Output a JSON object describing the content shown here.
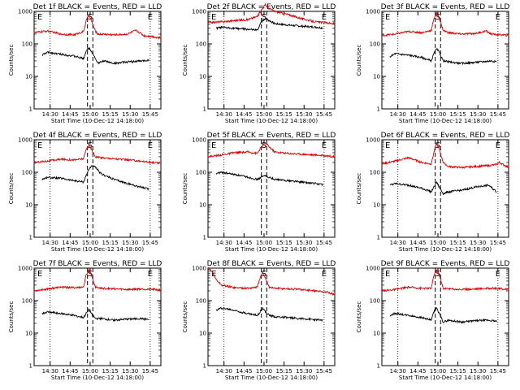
{
  "figure": {
    "common": {
      "title_suffix": " BLACK = Events, RED = LLD",
      "ylabel": "Counts/sec",
      "xlabel": "Start Time (10-Dec-12 14:18:00)",
      "y_ticks": [
        "1",
        "10",
        "100",
        "1000"
      ],
      "x_ticks": [
        "14:30",
        "14:45",
        "15:00",
        "15:15",
        "15:30",
        "15:45"
      ],
      "markers": [
        "E",
        "S",
        "E"
      ]
    },
    "colors": {
      "events": "#000000",
      "lld": "#dd0000"
    }
  },
  "chart_data": [
    {
      "type": "line",
      "title": "Det 1f BLACK = Events, RED = LLD",
      "detector": "Det 1f",
      "xlabel": "Start Time (10-Dec-12 14:18:00)",
      "ylabel": "Counts/sec",
      "yscale": "log",
      "ylim": [
        1,
        1000
      ],
      "x_units": "minutes after 14:18:00",
      "xlim": [
        0,
        95
      ],
      "series": [
        {
          "name": "BLACK = Events",
          "color": "#000000",
          "x": [
            6,
            10,
            20,
            30,
            37,
            39,
            41,
            43,
            46,
            48,
            52,
            60,
            70,
            82,
            86
          ],
          "y": [
            45,
            55,
            48,
            42,
            35,
            60,
            75,
            60,
            35,
            25,
            30,
            25,
            28,
            30,
            32
          ]
        },
        {
          "name": "RED = LLD",
          "color": "#dd0000",
          "x": [
            0,
            10,
            20,
            30,
            37,
            39,
            41,
            43,
            46,
            48,
            52,
            60,
            70,
            76,
            80,
            82,
            88,
            95
          ],
          "y": [
            220,
            250,
            200,
            190,
            240,
            500,
            800,
            500,
            240,
            200,
            200,
            190,
            200,
            260,
            210,
            180,
            170,
            150
          ]
        }
      ]
    },
    {
      "type": "line",
      "title": "Det 2f BLACK = Events, RED = LLD",
      "detector": "Det 2f",
      "xlabel": "Start Time (10-Dec-12 14:18:00)",
      "ylabel": "Counts/sec",
      "yscale": "log",
      "ylim": [
        1,
        1000
      ],
      "x_units": "minutes after 14:18:00",
      "xlim": [
        0,
        95
      ],
      "series": [
        {
          "name": "BLACK = Events",
          "color": "#000000",
          "x": [
            6,
            10,
            20,
            30,
            37,
            40,
            43,
            46,
            50,
            60,
            70,
            80,
            86
          ],
          "y": [
            300,
            320,
            300,
            280,
            260,
            480,
            600,
            520,
            420,
            380,
            350,
            330,
            310
          ]
        },
        {
          "name": "RED = LLD",
          "color": "#dd0000",
          "x": [
            0,
            10,
            20,
            30,
            37,
            40,
            43,
            46,
            50,
            60,
            70,
            80,
            90,
            95
          ],
          "y": [
            450,
            480,
            520,
            560,
            700,
            1100,
            1600,
            1200,
            1000,
            800,
            600,
            480,
            440,
            420
          ]
        }
      ]
    },
    {
      "type": "line",
      "title": "Det 3f BLACK = Events, RED = LLD",
      "detector": "Det 3f",
      "xlabel": "Start Time (10-Dec-12 14:18:00)",
      "ylabel": "Counts/sec",
      "yscale": "log",
      "ylim": [
        1,
        1000
      ],
      "x_units": "minutes after 14:18:00",
      "xlim": [
        0,
        95
      ],
      "series": [
        {
          "name": "BLACK = Events",
          "color": "#000000",
          "x": [
            6,
            10,
            20,
            30,
            37,
            39,
            41,
            43,
            46,
            50,
            60,
            70,
            82,
            86
          ],
          "y": [
            40,
            50,
            45,
            38,
            30,
            50,
            70,
            55,
            30,
            28,
            25,
            27,
            30,
            28
          ]
        },
        {
          "name": "RED = LLD",
          "color": "#dd0000",
          "x": [
            0,
            10,
            20,
            30,
            37,
            39,
            41,
            43,
            46,
            50,
            60,
            70,
            75,
            78,
            82,
            90,
            95
          ],
          "y": [
            180,
            200,
            240,
            220,
            260,
            600,
            900,
            600,
            260,
            220,
            200,
            210,
            230,
            250,
            200,
            190,
            180
          ]
        }
      ]
    },
    {
      "type": "line",
      "title": "Det 4f BLACK = Events, RED = LLD",
      "detector": "Det 4f",
      "xlabel": "Start Time (10-Dec-12 14:18:00)",
      "ylabel": "Counts/sec",
      "yscale": "log",
      "ylim": [
        1,
        1000
      ],
      "x_units": "minutes after 14:18:00",
      "xlim": [
        0,
        95
      ],
      "series": [
        {
          "name": "BLACK = Events",
          "color": "#000000",
          "x": [
            6,
            10,
            20,
            30,
            37,
            39,
            41,
            43,
            46,
            50,
            60,
            70,
            80,
            86
          ],
          "y": [
            60,
            70,
            65,
            55,
            50,
            80,
            120,
            160,
            140,
            90,
            60,
            45,
            35,
            30
          ]
        },
        {
          "name": "RED = LLD",
          "color": "#dd0000",
          "x": [
            0,
            10,
            20,
            30,
            37,
            39,
            41,
            43,
            46,
            50,
            60,
            70,
            80,
            88,
            95
          ],
          "y": [
            200,
            220,
            250,
            240,
            260,
            500,
            700,
            500,
            300,
            280,
            260,
            240,
            220,
            200,
            190
          ]
        }
      ]
    },
    {
      "type": "line",
      "title": "Det 5f BLACK = Events, RED = LLD",
      "detector": "Det 5f",
      "xlabel": "Start Time (10-Dec-12 14:18:00)",
      "ylabel": "Counts/sec",
      "yscale": "log",
      "ylim": [
        1,
        1000
      ],
      "x_units": "minutes after 14:18:00",
      "xlim": [
        0,
        95
      ],
      "series": [
        {
          "name": "BLACK = Events",
          "color": "#000000",
          "x": [
            6,
            10,
            20,
            30,
            37,
            40,
            43,
            46,
            50,
            60,
            70,
            80,
            86
          ],
          "y": [
            90,
            100,
            85,
            70,
            60,
            70,
            80,
            70,
            60,
            55,
            50,
            45,
            42
          ]
        },
        {
          "name": "RED = LLD",
          "color": "#dd0000",
          "x": [
            0,
            10,
            20,
            30,
            37,
            40,
            43,
            46,
            50,
            60,
            70,
            80,
            90,
            95
          ],
          "y": [
            300,
            340,
            400,
            420,
            380,
            600,
            800,
            600,
            420,
            380,
            360,
            340,
            320,
            300
          ]
        }
      ]
    },
    {
      "type": "line",
      "title": "Det 6f BLACK = Events, RED = LLD",
      "detector": "Det 6f",
      "xlabel": "Start Time (10-Dec-12 14:18:00)",
      "ylabel": "Counts/sec",
      "yscale": "log",
      "ylim": [
        1,
        1000
      ],
      "x_units": "minutes after 14:18:00",
      "xlim": [
        0,
        95
      ],
      "series": [
        {
          "name": "BLACK = Events",
          "color": "#000000",
          "x": [
            6,
            10,
            20,
            30,
            37,
            39,
            41,
            43,
            46,
            50,
            60,
            70,
            80,
            86
          ],
          "y": [
            40,
            45,
            40,
            32,
            25,
            35,
            50,
            35,
            22,
            25,
            28,
            35,
            40,
            25
          ]
        },
        {
          "name": "RED = LLD",
          "color": "#dd0000",
          "x": [
            0,
            10,
            20,
            30,
            37,
            39,
            41,
            43,
            46,
            50,
            60,
            70,
            80,
            85,
            88,
            95
          ],
          "y": [
            180,
            220,
            280,
            200,
            180,
            400,
            800,
            500,
            200,
            150,
            140,
            150,
            160,
            170,
            200,
            140
          ]
        }
      ]
    },
    {
      "type": "line",
      "title": "Det 7f BLACK = Events, RED = LLD",
      "detector": "Det 7f",
      "xlabel": "Start Time (10-Dec-12 14:18:00)",
      "ylabel": "Counts/sec",
      "yscale": "log",
      "ylim": [
        1,
        1000
      ],
      "x_units": "minutes after 14:18:00",
      "xlim": [
        0,
        95
      ],
      "series": [
        {
          "name": "BLACK = Events",
          "color": "#000000",
          "x": [
            6,
            10,
            20,
            30,
            37,
            39,
            41,
            43,
            46,
            50,
            60,
            70,
            80,
            86
          ],
          "y": [
            40,
            45,
            40,
            35,
            30,
            40,
            55,
            40,
            28,
            28,
            25,
            27,
            28,
            26
          ]
        },
        {
          "name": "RED = LLD",
          "color": "#dd0000",
          "x": [
            0,
            10,
            20,
            30,
            37,
            39,
            41,
            43,
            46,
            50,
            60,
            70,
            80,
            90,
            95
          ],
          "y": [
            200,
            230,
            260,
            250,
            260,
            600,
            900,
            600,
            260,
            240,
            230,
            220,
            230,
            220,
            210
          ]
        }
      ]
    },
    {
      "type": "line",
      "title": "Det 8f BLACK = Events, RED = LLD",
      "detector": "Det 8f",
      "xlabel": "Start Time (10-Dec-12 14:18:00)",
      "ylabel": "Counts/sec",
      "yscale": "log",
      "ylim": [
        1,
        1000
      ],
      "x_units": "minutes after 14:18:00",
      "xlim": [
        0,
        95
      ],
      "series": [
        {
          "name": "BLACK = Events",
          "color": "#000000",
          "x": [
            6,
            10,
            20,
            30,
            37,
            39,
            41,
            43,
            46,
            50,
            60,
            70,
            80,
            86
          ],
          "y": [
            50,
            60,
            50,
            40,
            35,
            45,
            60,
            45,
            35,
            32,
            30,
            28,
            26,
            25
          ]
        },
        {
          "name": "RED = LLD",
          "color": "#dd0000",
          "x": [
            0,
            3,
            6,
            10,
            20,
            30,
            37,
            39,
            41,
            43,
            46,
            50,
            60,
            70,
            80,
            90,
            95
          ],
          "y": [
            1000,
            800,
            450,
            300,
            250,
            240,
            260,
            500,
            700,
            500,
            260,
            240,
            230,
            220,
            200,
            180,
            150
          ]
        }
      ]
    },
    {
      "type": "line",
      "title": "Det 9f BLACK = Events, RED = LLD",
      "detector": "Det 9f",
      "xlabel": "Start Time (10-Dec-12 14:18:00)",
      "ylabel": "Counts/sec",
      "yscale": "log",
      "ylim": [
        1,
        1000
      ],
      "x_units": "minutes after 14:18:00",
      "xlim": [
        0,
        95
      ],
      "series": [
        {
          "name": "BLACK = Events",
          "color": "#000000",
          "x": [
            6,
            10,
            20,
            30,
            37,
            39,
            41,
            43,
            46,
            50,
            60,
            70,
            80,
            86
          ],
          "y": [
            35,
            40,
            35,
            30,
            25,
            45,
            60,
            40,
            22,
            25,
            22,
            24,
            25,
            23
          ]
        },
        {
          "name": "RED = LLD",
          "color": "#dd0000",
          "x": [
            0,
            10,
            20,
            30,
            37,
            39,
            41,
            43,
            46,
            50,
            60,
            70,
            80,
            90,
            95
          ],
          "y": [
            200,
            220,
            260,
            240,
            240,
            600,
            900,
            600,
            240,
            230,
            220,
            230,
            240,
            230,
            220
          ]
        }
      ]
    }
  ]
}
